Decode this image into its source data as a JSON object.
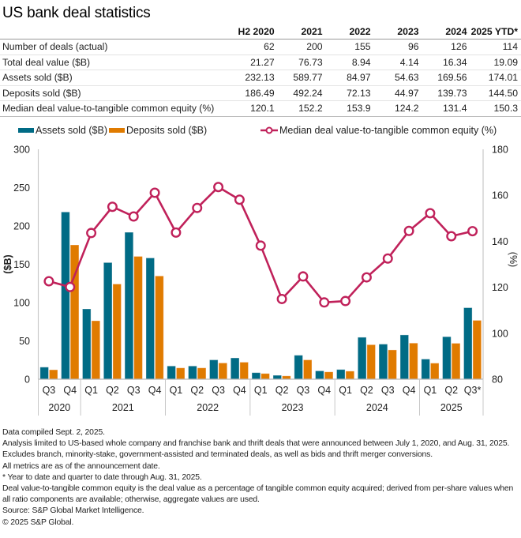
{
  "title": "US bank deal statistics",
  "table": {
    "columns": [
      "",
      "H2 2020",
      "2021",
      "2022",
      "2023",
      "2024",
      "2025 YTD*"
    ],
    "rows": [
      {
        "label": "Number of deals (actual)",
        "values": [
          "62",
          "200",
          "155",
          "96",
          "126",
          "114"
        ]
      },
      {
        "label": "Total deal value ($B)",
        "values": [
          "21.27",
          "76.73",
          "8.94",
          "4.14",
          "16.34",
          "19.09"
        ]
      },
      {
        "label": "Assets sold ($B)",
        "values": [
          "232.13",
          "589.77",
          "84.97",
          "54.63",
          "169.56",
          "174.01"
        ]
      },
      {
        "label": "Deposits sold ($B)",
        "values": [
          "186.49",
          "492.24",
          "72.13",
          "44.97",
          "139.73",
          "144.50"
        ]
      },
      {
        "label": "Median deal value-to-tangible common equity (%)",
        "values": [
          "120.1",
          "152.2",
          "153.9",
          "124.2",
          "131.4",
          "150.3"
        ]
      }
    ]
  },
  "colors": {
    "assets": "#006b85",
    "deposits": "#e07b00",
    "median": "#c0215a",
    "axis": "#c8c8c8"
  },
  "chart_data": {
    "type": "bar",
    "combo": "grouped bars (left axis) + line with markers (right axis)",
    "legend": {
      "position": "top",
      "entries": [
        "Assets sold ($B)",
        "Deposits sold ($B)",
        "Median deal value-to-tangible common equity (%)"
      ]
    },
    "categories": [
      "Q3",
      "Q4",
      "Q1",
      "Q2",
      "Q3",
      "Q4",
      "Q1",
      "Q2",
      "Q3",
      "Q4",
      "Q1",
      "Q2",
      "Q3",
      "Q4",
      "Q1",
      "Q2",
      "Q3",
      "Q4",
      "Q1",
      "Q2",
      "Q3*"
    ],
    "year_groups": [
      {
        "label": "2020",
        "count": 2
      },
      {
        "label": "2021",
        "count": 4
      },
      {
        "label": "2022",
        "count": 4
      },
      {
        "label": "2023",
        "count": 4
      },
      {
        "label": "2024",
        "count": 4
      },
      {
        "label": "2025",
        "count": 3
      }
    ],
    "series": [
      {
        "name": "Assets sold ($B)",
        "axis": "left",
        "kind": "bar",
        "values": [
          15.5,
          218,
          91.5,
          152,
          191.5,
          158,
          17,
          17,
          25,
          27.5,
          8.3,
          4.8,
          31,
          10.7,
          12.4,
          54.5,
          45.5,
          57.6,
          26,
          55.2,
          93
        ]
      },
      {
        "name": "Deposits sold ($B)",
        "axis": "left",
        "kind": "bar",
        "values": [
          12,
          175,
          76,
          124,
          160,
          134.5,
          14.5,
          14.5,
          21,
          22,
          7.2,
          4.1,
          25,
          9.3,
          10.3,
          44.8,
          38,
          46.9,
          20.7,
          46.6,
          76.6
        ]
      },
      {
        "name": "Median deal value-to-tangible common equity (%)",
        "axis": "right",
        "kind": "line",
        "values": [
          122.6,
          120.1,
          143.6,
          155.0,
          150.8,
          161.1,
          143.8,
          154.5,
          163.6,
          158.1,
          138.1,
          114.9,
          124.7,
          113.4,
          114.0,
          124.3,
          132.5,
          144.5,
          152.2,
          142.2,
          144.4
        ]
      }
    ],
    "y_left": {
      "label": "($B)",
      "range": [
        0,
        300
      ],
      "ticks": [
        "0",
        "50",
        "100",
        "150",
        "200",
        "250",
        "300"
      ]
    },
    "y_right": {
      "label": "(%)",
      "range": [
        80,
        180
      ],
      "ticks": [
        "80",
        "100",
        "120",
        "140",
        "160",
        "180"
      ]
    },
    "xlabel": "",
    "grid": false
  },
  "notes": [
    "Data compiled Sept. 2, 2025.",
    "Analysis limited to US-based whole company and franchise bank and thrift deals that were announced between July 1, 2020, and Aug. 31, 2025. Excludes branch, minority-stake, government-assisted and terminated deals, as well as bids and thrift merger conversions.",
    "All metrics are as of the announcement date.",
    "* Year to date and quarter to date through Aug. 31, 2025.",
    "Deal value-to-tangible common equity is the deal value as a percentage of tangible common equity acquired; derived from per-share values when all ratio components are available; otherwise, aggregate values are used.",
    "Source: S&P Global Market Intelligence.",
    "© 2025 S&P Global."
  ]
}
